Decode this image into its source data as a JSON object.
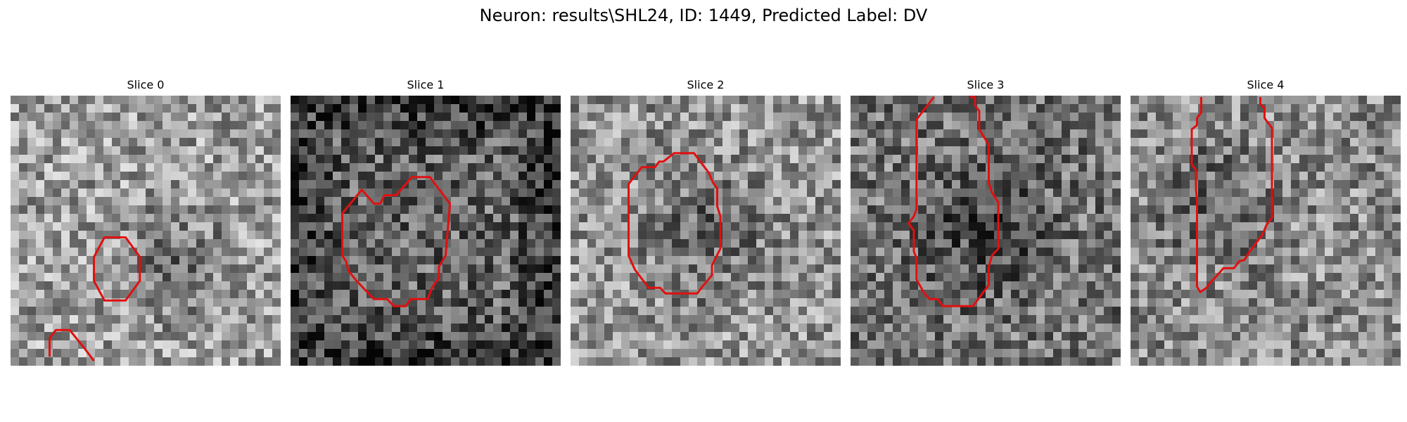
{
  "figure": {
    "title": "Neuron: results\\SHL24, ID: 1449, Predicted Label: DV",
    "contour_color": "#e01010"
  },
  "panels": [
    {
      "title": "Slice 0",
      "brightness": 0.62,
      "dark_region": "lower-right",
      "contour": "small octagon, lower center-right; partial curve at bottom-left"
    },
    {
      "title": "Slice 1",
      "brightness": 0.4,
      "dark_region": "borders",
      "contour": "large octagon, lower center"
    },
    {
      "title": "Slice 2",
      "brightness": 0.58,
      "dark_region": "center",
      "contour": "large octagon, center"
    },
    {
      "title": "Slice 3",
      "brightness": 0.45,
      "dark_region": "center",
      "contour": "tall open shape spanning full height"
    },
    {
      "title": "Slice 4",
      "brightness": 0.55,
      "dark_region": "upper-left",
      "contour": "tall open shape, center to bottom"
    }
  ]
}
